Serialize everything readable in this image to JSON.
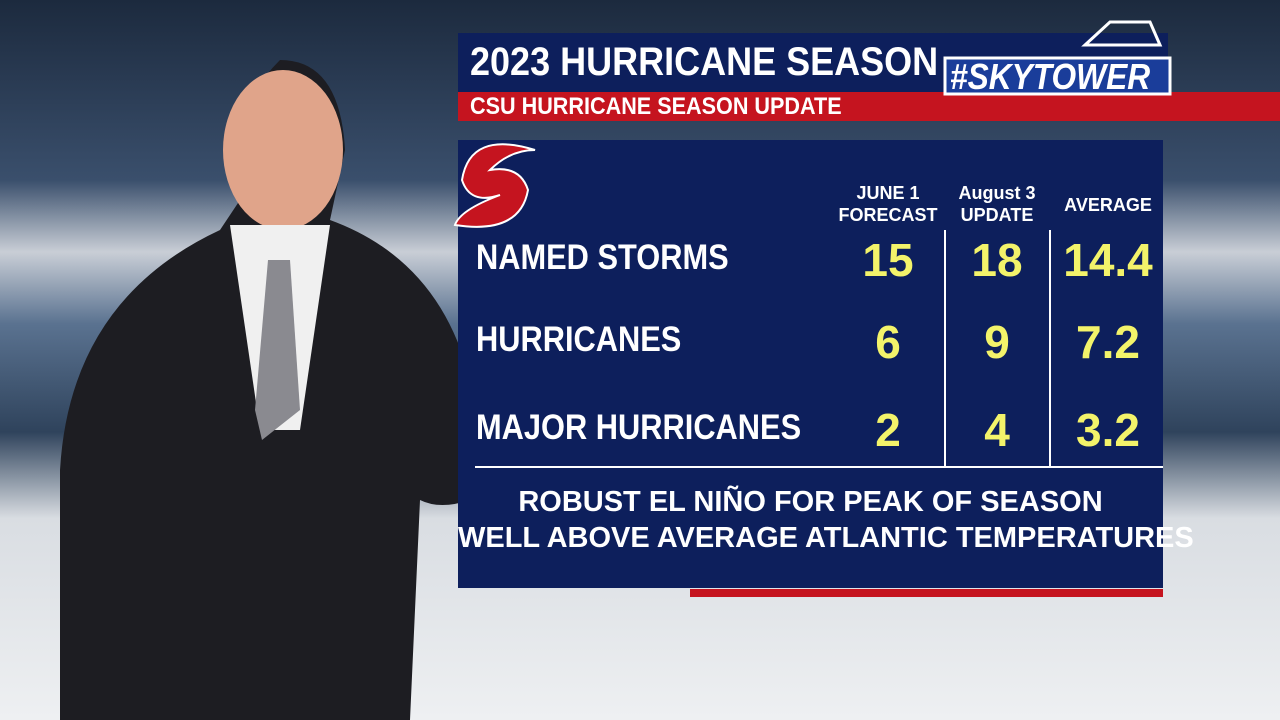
{
  "header": {
    "title": "2023 HURRICANE SEASON",
    "brand": "#SKYTOWER",
    "subtitle": "CSU HURRICANE SEASON UPDATE"
  },
  "table": {
    "columns": [
      "JUNE 1 FORECAST",
      "August 3 UPDATE",
      "AVERAGE"
    ],
    "rows": [
      [
        "NAMED STORMS",
        "15",
        "18",
        "14.4"
      ],
      [
        "HURRICANES",
        "6",
        "9",
        "7.2"
      ],
      [
        "MAJOR HURRICANES",
        "2",
        "4",
        "3.2"
      ]
    ]
  },
  "footer": [
    "ROBUST EL NIÑO FOR PEAK OF SEASON",
    "WELL ABOVE AVERAGE ATLANTIC TEMPERATURES"
  ]
}
